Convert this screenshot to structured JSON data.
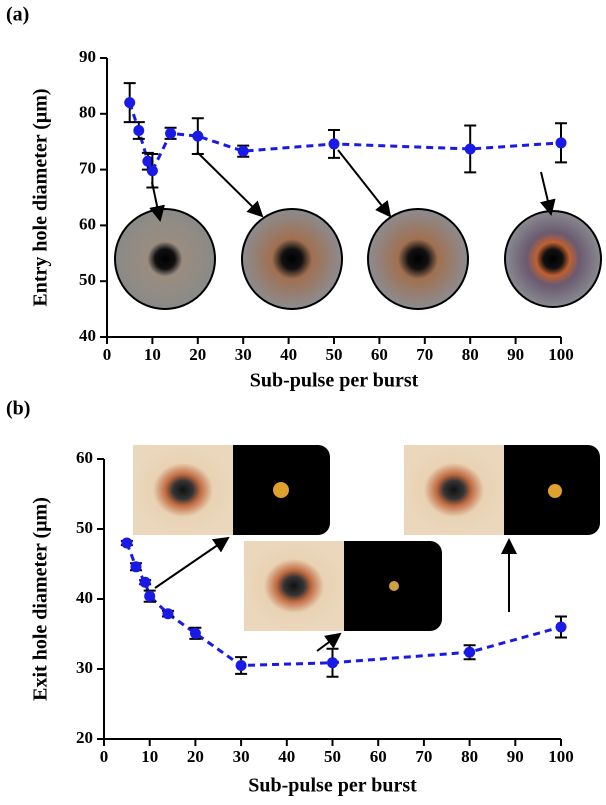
{
  "chart_data": [
    {
      "type": "line",
      "panel_label": "(a)",
      "xlabel": "Sub-pulse per burst",
      "ylabel": "Entry hole diameter (μm)",
      "x": [
        5,
        7,
        9,
        10,
        14,
        20,
        30,
        50,
        80,
        100
      ],
      "values": [
        82,
        77,
        71.5,
        69.8,
        76.5,
        76,
        73.3,
        74.6,
        73.7,
        74.8
      ],
      "errors": [
        3.5,
        1.5,
        1.5,
        3,
        1,
        3.2,
        1,
        2.5,
        4.2,
        3.5
      ],
      "color": "#1a1ae6",
      "xlim": [
        0,
        100
      ],
      "xticks": [
        0,
        10,
        20,
        30,
        40,
        50,
        60,
        70,
        80,
        90,
        100
      ],
      "ylim": [
        40,
        90
      ],
      "yticks": [
        40,
        50,
        60,
        70,
        80,
        90
      ]
    },
    {
      "type": "line",
      "panel_label": "(b)",
      "xlabel": "Sub-pulse per burst",
      "ylabel": "Exit hole diameter (μm)",
      "x": [
        5,
        7,
        9,
        10,
        14,
        20,
        30,
        50,
        80,
        100
      ],
      "values": [
        48,
        44.6,
        42.4,
        40.4,
        37.9,
        35.1,
        30.5,
        30.9,
        32.4,
        36
      ],
      "errors": [
        0.3,
        0.5,
        0.3,
        0.8,
        0.4,
        0.8,
        1.2,
        2,
        1,
        1.5
      ],
      "color": "#1a1ae6",
      "xlim": [
        0,
        100
      ],
      "xticks": [
        0,
        10,
        20,
        30,
        40,
        50,
        60,
        70,
        80,
        90,
        100
      ],
      "ylim": [
        20,
        60
      ],
      "yticks": [
        20,
        30,
        40,
        50,
        60
      ]
    }
  ]
}
